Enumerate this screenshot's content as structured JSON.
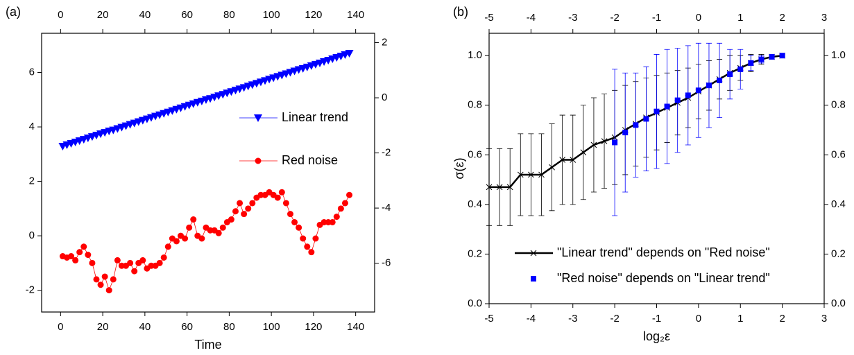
{
  "chart_data": [
    {
      "type": "line",
      "label": "(a)",
      "xlabel": "Time",
      "xlim": [
        -9,
        149
      ],
      "xticks": [
        0,
        20,
        40,
        60,
        80,
        100,
        120,
        140
      ],
      "ylim": [
        -2.8,
        7.44
      ],
      "yticks": [
        -2,
        0,
        2,
        4,
        6
      ],
      "y2lim": [
        -7.77,
        2.34
      ],
      "y2ticks": [
        -6,
        -4,
        -2,
        0,
        2
      ],
      "legend": "right",
      "x": [
        1,
        3,
        5,
        7,
        9,
        11,
        13,
        15,
        17,
        19,
        21,
        23,
        25,
        27,
        29,
        31,
        33,
        35,
        37,
        39,
        41,
        43,
        45,
        47,
        49,
        51,
        53,
        55,
        57,
        59,
        61,
        63,
        65,
        67,
        69,
        71,
        73,
        75,
        77,
        79,
        81,
        83,
        85,
        87,
        89,
        91,
        93,
        95,
        97,
        99,
        101,
        103,
        105,
        107,
        109,
        111,
        113,
        115,
        117,
        119,
        121,
        123,
        125,
        127,
        129,
        131,
        133,
        135,
        137
      ],
      "series": [
        {
          "name": "Linear trend",
          "color": "#0000ff",
          "marker": "triangle-down",
          "axis": "y2",
          "values": [
            -1.76,
            -1.71,
            -1.66,
            -1.61,
            -1.56,
            -1.51,
            -1.46,
            -1.41,
            -1.36,
            -1.31,
            -1.26,
            -1.21,
            -1.17,
            -1.12,
            -1.07,
            -1.02,
            -0.97,
            -0.92,
            -0.87,
            -0.82,
            -0.77,
            -0.72,
            -0.67,
            -0.62,
            -0.57,
            -0.52,
            -0.47,
            -0.42,
            -0.37,
            -0.32,
            -0.27,
            -0.22,
            -0.17,
            -0.12,
            -0.07,
            -0.03,
            0.02,
            0.07,
            0.12,
            0.17,
            0.22,
            0.27,
            0.32,
            0.37,
            0.42,
            0.47,
            0.52,
            0.57,
            0.62,
            0.67,
            0.72,
            0.77,
            0.82,
            0.87,
            0.92,
            0.97,
            1.02,
            1.06,
            1.11,
            1.16,
            1.21,
            1.26,
            1.31,
            1.36,
            1.41,
            1.46,
            1.51,
            1.56,
            1.61
          ]
        },
        {
          "name": "Red noise",
          "color": "#ff0000",
          "marker": "circle",
          "values": [
            -0.75,
            -0.8,
            -0.75,
            -0.9,
            -0.6,
            -0.4,
            -0.7,
            -1.0,
            -1.6,
            -1.8,
            -1.5,
            -2.0,
            -1.6,
            -0.9,
            -1.1,
            -1.1,
            -1.0,
            -1.3,
            -1.0,
            -0.9,
            -1.2,
            -1.1,
            -1.1,
            -1.0,
            -0.8,
            -0.4,
            -0.1,
            -0.2,
            0.0,
            -0.1,
            0.3,
            0.6,
            0.0,
            -0.1,
            0.3,
            0.2,
            0.2,
            0.1,
            0.3,
            0.5,
            0.6,
            0.9,
            1.2,
            0.8,
            1.0,
            1.2,
            1.4,
            1.5,
            1.5,
            1.6,
            1.5,
            1.4,
            1.6,
            1.2,
            0.8,
            0.5,
            0.3,
            -0.1,
            -0.4,
            -0.6,
            -0.1,
            0.4,
            0.5,
            0.5,
            0.5,
            0.7,
            1.0,
            1.2,
            1.5
          ]
        }
      ]
    },
    {
      "type": "errorbar",
      "label": "(b)",
      "xlabel": "log₂ε",
      "ylabel": "σ(ε)",
      "xlim": [
        -5,
        3
      ],
      "xticks": [
        -5,
        -4,
        -3,
        -2,
        -1,
        0,
        1,
        2,
        3
      ],
      "ylim": [
        0,
        1.09
      ],
      "yticks": [
        {
          "value": 0,
          "label": "0.0"
        },
        0.2,
        0.4,
        0.6,
        0.8,
        {
          "value": 1,
          "label": "1.0"
        }
      ],
      "y2lim": [
        0,
        1.09
      ],
      "y2ticks": [
        {
          "value": 0,
          "label": "0.0"
        },
        0.2,
        0.4,
        0.6,
        0.8,
        {
          "value": 1,
          "label": "1.0"
        }
      ],
      "legend": "lower right",
      "series": [
        {
          "name": "\"Linear trend\" depends on \"Red noise\"",
          "color": "#000000",
          "marker": "x",
          "line": true,
          "x": [
            -5,
            -4.75,
            -4.5,
            -4.25,
            -4,
            -3.75,
            -3.5,
            -3.25,
            -3,
            -2.75,
            -2.5,
            -2.25,
            -2,
            -1.75,
            -1.5,
            -1.25,
            -1,
            -0.75,
            -0.5,
            -0.25,
            0,
            0.25,
            0.5,
            0.75,
            1,
            1.25,
            1.5,
            1.75,
            2
          ],
          "values": [
            0.47,
            0.47,
            0.47,
            0.52,
            0.52,
            0.52,
            0.55,
            0.58,
            0.58,
            0.61,
            0.64,
            0.655,
            0.67,
            0.7,
            0.725,
            0.75,
            0.77,
            0.79,
            0.81,
            0.83,
            0.855,
            0.88,
            0.905,
            0.93,
            0.95,
            0.97,
            0.985,
            0.995,
            1.0
          ],
          "errors": [
            0.155,
            0.155,
            0.155,
            0.165,
            0.165,
            0.165,
            0.175,
            0.18,
            0.18,
            0.19,
            0.19,
            0.19,
            0.19,
            0.18,
            0.17,
            0.16,
            0.15,
            0.14,
            0.13,
            0.12,
            0.11,
            0.1,
            0.08,
            0.07,
            0.05,
            0.035,
            0.02,
            0.01,
            0.005
          ]
        },
        {
          "name": "\"Red noise\" depends on \"Linear trend\"",
          "color": "#0000ff",
          "marker": "square",
          "line": false,
          "x": [
            -2,
            -1.75,
            -1.5,
            -1.25,
            -1,
            -0.75,
            -0.5,
            -0.25,
            0,
            0.25,
            0.5,
            0.75,
            1,
            1.25,
            1.5,
            1.75,
            2
          ],
          "values": [
            0.65,
            0.69,
            0.72,
            0.745,
            0.775,
            0.795,
            0.82,
            0.84,
            0.86,
            0.88,
            0.9,
            0.925,
            0.945,
            0.97,
            0.985,
            0.995,
            1.0
          ],
          "errors": [
            0.295,
            0.24,
            0.21,
            0.21,
            0.23,
            0.23,
            0.21,
            0.2,
            0.19,
            0.17,
            0.15,
            0.1,
            0.08,
            0.03,
            0.015,
            0.005,
            0.002
          ]
        }
      ]
    }
  ]
}
